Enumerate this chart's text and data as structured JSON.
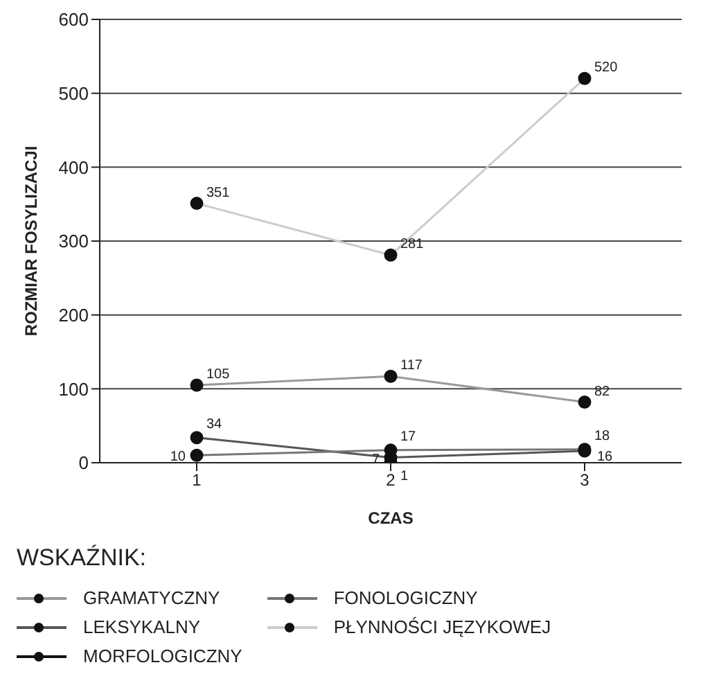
{
  "chart_data": {
    "type": "line",
    "xlabel": "CZAS",
    "ylabel": "ROZMIAR FOSYLIZACJI",
    "legend_title": "WSKAŹNIK:",
    "x": [
      1,
      2,
      3
    ],
    "xlim": [
      0.5,
      3.5
    ],
    "xticks": [
      1,
      2,
      3
    ],
    "ylim": [
      0,
      600
    ],
    "yticks": [
      0,
      100,
      200,
      300,
      400,
      500,
      600
    ],
    "grid": "y",
    "legend": "bottom",
    "marker": "circle",
    "line_style": "solid",
    "series": [
      {
        "name": "GRAMATYCZNY",
        "color": "#999999",
        "values": [
          105,
          117,
          82
        ],
        "value_labels": [
          "105",
          "117",
          "82"
        ]
      },
      {
        "name": "LEKSYKALNY",
        "color": "#555555",
        "values": [
          34,
          7,
          16
        ],
        "value_labels": [
          "34",
          "7",
          "16"
        ]
      },
      {
        "name": "MORFOLOGICZNY",
        "color": "#111111",
        "values": [
          null,
          1,
          null
        ],
        "value_labels": [
          null,
          "1",
          null
        ]
      },
      {
        "name": "FONOLOGICZNY",
        "color": "#777777",
        "values": [
          10,
          17,
          18
        ],
        "value_labels": [
          "10",
          "17",
          "18"
        ]
      },
      {
        "name": "PŁYNNOŚCI JĘZYKOWEJ",
        "color": "#cccccc",
        "values": [
          351,
          281,
          520
        ],
        "value_labels": [
          "351",
          "281",
          "520"
        ]
      }
    ]
  }
}
